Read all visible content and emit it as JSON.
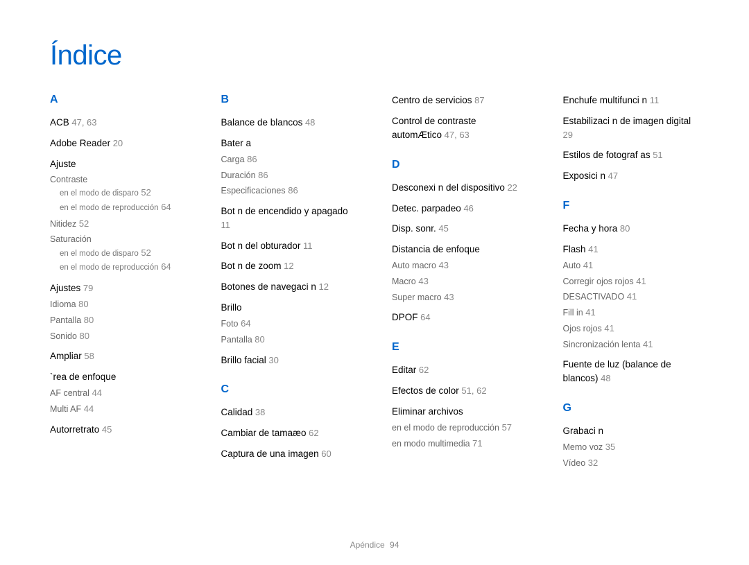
{
  "title": "Índice",
  "footer": {
    "label": "Apéndice",
    "page": "94"
  },
  "columns": [
    {
      "sections": [
        {
          "letter": "A",
          "entries": [
            {
              "main": "ACB",
              "pages": "47, 63"
            },
            {
              "main": "Adobe Reader",
              "pages": "20"
            },
            {
              "main": "Ajuste",
              "subs": [
                {
                  "text": "Contraste",
                  "subsubs": [
                    {
                      "text": "en el modo de disparo",
                      "page": "52"
                    },
                    {
                      "text": "en el modo de reproducción",
                      "page": "64"
                    }
                  ]
                },
                {
                  "text": "Nitidez",
                  "page": "52"
                },
                {
                  "text": "Saturación",
                  "subsubs": [
                    {
                      "text": "en el modo de disparo",
                      "page": "52"
                    },
                    {
                      "text": "en el modo de reproducción",
                      "page": "64"
                    }
                  ]
                }
              ]
            },
            {
              "main": "Ajustes",
              "pages": "79",
              "subs": [
                {
                  "text": "Idioma",
                  "page": "80"
                },
                {
                  "text": "Pantalla",
                  "page": "80"
                },
                {
                  "text": "Sonido",
                  "page": "80"
                }
              ]
            },
            {
              "main": "Ampliar",
              "pages": "58"
            },
            {
              "main": "`rea de enfoque",
              "subs": [
                {
                  "text": "AF central",
                  "page": "44"
                },
                {
                  "text": "Multi AF",
                  "page": "44"
                }
              ]
            },
            {
              "main": "Autorretrato",
              "pages": "45"
            }
          ]
        }
      ]
    },
    {
      "sections": [
        {
          "letter": "B",
          "entries": [
            {
              "main": "Balance de blancos",
              "pages": "48"
            },
            {
              "main": "Bater a",
              "subs": [
                {
                  "text": "Carga",
                  "page": "86"
                },
                {
                  "text": "Duración",
                  "page": "86"
                },
                {
                  "text": "Especificaciones",
                  "page": "86"
                }
              ]
            },
            {
              "main": "Bot n de encendido y apagado",
              "pages": "11"
            },
            {
              "main": "Bot n del obturador",
              "pages": "11"
            },
            {
              "main": "Bot n de zoom",
              "pages": "12"
            },
            {
              "main": "Botones de navegaci n",
              "pages": "12"
            },
            {
              "main": "Brillo",
              "subs": [
                {
                  "text": "Foto",
                  "page": "64"
                },
                {
                  "text": "Pantalla",
                  "page": "80"
                }
              ]
            },
            {
              "main": "Brillo facial",
              "pages": "30"
            }
          ]
        },
        {
          "letter": "C",
          "entries": [
            {
              "main": "Calidad",
              "pages": "38"
            },
            {
              "main": "Cambiar de tamaæo",
              "pages": "62"
            },
            {
              "main": "Captura de una imagen",
              "pages": "60"
            }
          ]
        }
      ]
    },
    {
      "sections": [
        {
          "letter": "",
          "entries": [
            {
              "main": "Centro de servicios",
              "pages": "87"
            },
            {
              "main": "Control de contraste automÆtico",
              "pages": "47, 63"
            }
          ]
        },
        {
          "letter": "D",
          "entries": [
            {
              "main": "Desconexi n del dispositivo",
              "pages": "22"
            },
            {
              "main": "Detec. parpadeo",
              "pages": "46"
            },
            {
              "main": "Disp. sonr.",
              "pages": "45"
            },
            {
              "main": "Distancia de enfoque",
              "subs": [
                {
                  "text": "Auto macro",
                  "page": "43"
                },
                {
                  "text": "Macro",
                  "page": "43"
                },
                {
                  "text": "Super macro",
                  "page": "43"
                }
              ]
            },
            {
              "main": "DPOF",
              "pages": "64"
            }
          ]
        },
        {
          "letter": "E",
          "entries": [
            {
              "main": "Editar",
              "pages": "62"
            },
            {
              "main": "Efectos de color",
              "pages": "51, 62"
            },
            {
              "main": "Eliminar archivos",
              "subs": [
                {
                  "text": "en el modo de reproducción",
                  "page": "57"
                },
                {
                  "text": "en modo multimedia",
                  "page": "71"
                }
              ]
            }
          ]
        }
      ]
    },
    {
      "sections": [
        {
          "letter": "",
          "entries": [
            {
              "main": "Enchufe multifunci n",
              "pages": "11"
            },
            {
              "main": "Estabilizaci n de imagen digital",
              "pages": "29"
            },
            {
              "main": "Estilos de fotograf as",
              "pages": "51"
            },
            {
              "main": "Exposici n",
              "pages": "47"
            }
          ]
        },
        {
          "letter": "F",
          "entries": [
            {
              "main": "Fecha y hora",
              "pages": "80"
            },
            {
              "main": "Flash",
              "pages": "41",
              "subs": [
                {
                  "text": "Auto",
                  "page": "41"
                },
                {
                  "text": "Corregir ojos rojos",
                  "page": "41"
                },
                {
                  "text": "DESACTIVADO",
                  "page": "41"
                },
                {
                  "text": "Fill in",
                  "page": "41"
                },
                {
                  "text": "Ojos rojos",
                  "page": "41"
                },
                {
                  "text": "Sincronización lenta",
                  "page": "41"
                }
              ]
            },
            {
              "main": "Fuente de luz (balance de blancos)",
              "pages": "48"
            }
          ]
        },
        {
          "letter": "G",
          "entries": [
            {
              "main": "Grabaci n",
              "subs": [
                {
                  "text": "Memo voz",
                  "page": "35"
                },
                {
                  "text": "Vídeo",
                  "page": "32"
                }
              ]
            }
          ]
        }
      ]
    }
  ]
}
